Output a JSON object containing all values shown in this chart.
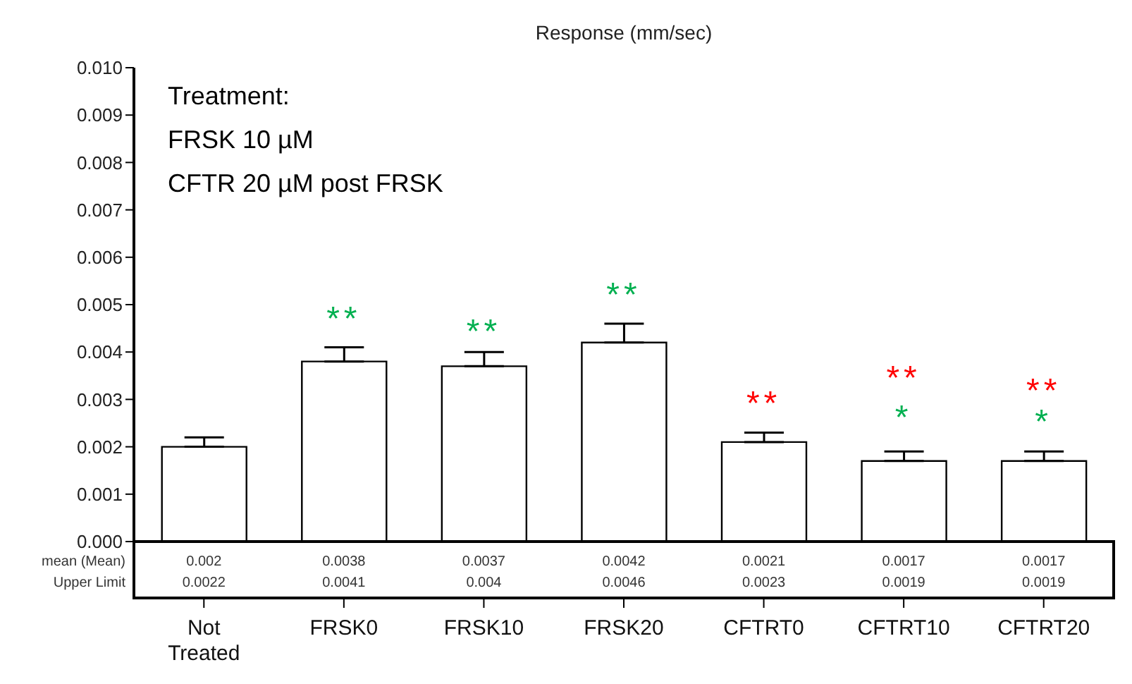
{
  "chart_data": {
    "type": "bar",
    "title": "Response (mm/sec)",
    "categories": [
      "Not Treated",
      "FRSK0",
      "FRSK10",
      "FRSK20",
      "CFTRT0",
      "CFTRT10",
      "CFTRT20"
    ],
    "series": [
      {
        "color": "#ffffff",
        "values": [
          0.002,
          0.0038,
          0.0037,
          0.0042,
          0.0021,
          0.0017,
          0.0017
        ],
        "errors": [
          [
            0.002,
            0.0022
          ],
          [
            0.0038,
            0.0041
          ],
          [
            0.0037,
            0.004
          ],
          [
            0.0042,
            0.0046
          ],
          [
            0.0021,
            0.0023
          ],
          [
            0.0017,
            0.0019
          ],
          [
            0.0017,
            0.0019
          ]
        ]
      }
    ],
    "data_labels": true,
    "ylim": [
      0,
      0.01
    ],
    "yticks": [
      {
        "value": 0,
        "label": "0.000"
      },
      {
        "value": 0.001,
        "label": "0.001"
      },
      {
        "value": 0.002,
        "label": "0.002"
      },
      {
        "value": 0.003,
        "label": "0.003"
      },
      {
        "value": 0.004,
        "label": "0.004"
      },
      {
        "value": 0.005,
        "label": "0.005"
      },
      {
        "value": 0.006,
        "label": "0.006"
      },
      {
        "value": 0.007,
        "label": "0.007"
      },
      {
        "value": 0.008,
        "label": "0.008"
      },
      {
        "value": 0.009,
        "label": "0.009"
      },
      {
        "value": 0.01,
        "label": "0.010"
      }
    ],
    "grid": false,
    "legend": false,
    "annotations": [
      "mean (Mean)",
      "Upper Limit",
      "Treatment:",
      "FRSK 10 µM",
      "CFTR 20 µM post FRSK",
      "**",
      "**",
      "**",
      "**",
      "**",
      "*",
      "**",
      "*",
      "0.0022",
      "0.0041",
      "0.004",
      "0.0046",
      "0.0023",
      "0.0019",
      "0.0019"
    ]
  }
}
